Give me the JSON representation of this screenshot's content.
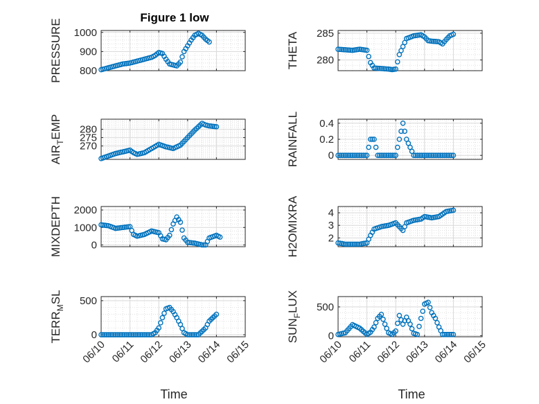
{
  "figure": {
    "title": "Figure 1 low",
    "xlabel": "Time",
    "marker_color": "#0072BD",
    "grid_color": "#D9D9D9"
  },
  "chart_data": [
    {
      "type": "scatter",
      "ylabel": "PRESSURE",
      "ylim": [
        800,
        1010
      ],
      "yticks": [
        800,
        900,
        1000
      ],
      "xlim": [
        "06/10",
        "06/15"
      ],
      "xticks": [],
      "points": [
        [
          "06/10 00:00",
          805
        ],
        [
          "06/10 06:00",
          815
        ],
        [
          "06/10 12:00",
          825
        ],
        [
          "06/10 18:00",
          835
        ],
        [
          "06/11 00:00",
          840
        ],
        [
          "06/11 06:00",
          850
        ],
        [
          "06/11 12:00",
          860
        ],
        [
          "06/11 18:00",
          870
        ],
        [
          "06/11 21:00",
          880
        ],
        [
          "06/12 00:00",
          895
        ],
        [
          "06/12 03:00",
          890
        ],
        [
          "06/12 06:00",
          860
        ],
        [
          "06/12 09:00",
          835
        ],
        [
          "06/12 12:00",
          830
        ],
        [
          "06/12 15:00",
          825
        ],
        [
          "06/12 18:00",
          845
        ],
        [
          "06/12 21:00",
          900
        ],
        [
          "06/13 00:00",
          930
        ],
        [
          "06/13 03:00",
          960
        ],
        [
          "06/13 06:00",
          985
        ],
        [
          "06/13 09:00",
          995
        ],
        [
          "06/13 12:00",
          985
        ],
        [
          "06/13 15:00",
          965
        ],
        [
          "06/13 18:00",
          950
        ]
      ]
    },
    {
      "type": "scatter",
      "ylabel": "THETA",
      "ylim": [
        278,
        285.5
      ],
      "yticks": [
        280,
        285
      ],
      "xlim": [
        "06/10",
        "06/15"
      ],
      "xticks": [],
      "points": [
        [
          "06/10 00:00",
          282.0
        ],
        [
          "06/10 06:00",
          281.9
        ],
        [
          "06/10 12:00",
          281.8
        ],
        [
          "06/10 18:00",
          282.0
        ],
        [
          "06/11 00:00",
          281.8
        ],
        [
          "06/11 03:00",
          279.5
        ],
        [
          "06/11 06:00",
          278.5
        ],
        [
          "06/11 12:00",
          278.4
        ],
        [
          "06/11 18:00",
          278.3
        ],
        [
          "06/11 21:00",
          278.2
        ],
        [
          "06/12 00:00",
          278.3
        ],
        [
          "06/12 03:00",
          281.0
        ],
        [
          "06/12 06:00",
          282.5
        ],
        [
          "06/12 09:00",
          284.0
        ],
        [
          "06/12 15:00",
          284.5
        ],
        [
          "06/12 21:00",
          284.7
        ],
        [
          "06/13 00:00",
          284.3
        ],
        [
          "06/13 03:00",
          283.6
        ],
        [
          "06/13 06:00",
          283.5
        ],
        [
          "06/13 12:00",
          283.4
        ],
        [
          "06/13 15:00",
          283.0
        ],
        [
          "06/13 18:00",
          283.8
        ],
        [
          "06/13 21:00",
          284.5
        ],
        [
          "06/14 00:00",
          284.8
        ]
      ]
    },
    {
      "type": "scatter",
      "ylabel": "AIR_TEMP",
      "ylim": [
        262,
        286
      ],
      "yticks": [
        270,
        275,
        280
      ],
      "xlim": [
        "06/10",
        "06/15"
      ],
      "xticks": [],
      "points": [
        [
          "06/10 00:00",
          262.5
        ],
        [
          "06/10 06:00",
          264.0
        ],
        [
          "06/10 12:00",
          265.5
        ],
        [
          "06/10 18:00",
          266.5
        ],
        [
          "06/11 00:00",
          267.5
        ],
        [
          "06/11 03:00",
          266.0
        ],
        [
          "06/11 06:00",
          265.0
        ],
        [
          "06/11 12:00",
          266.0
        ],
        [
          "06/11 18:00",
          268.5
        ],
        [
          "06/12 00:00",
          271.0
        ],
        [
          "06/12 06:00",
          269.5
        ],
        [
          "06/12 12:00",
          268.5
        ],
        [
          "06/12 18:00",
          270.5
        ],
        [
          "06/13 00:00",
          275.0
        ],
        [
          "06/13 06:00",
          279.5
        ],
        [
          "06/13 12:00",
          283.5
        ],
        [
          "06/13 15:00",
          282.5
        ],
        [
          "06/13 18:00",
          282.0
        ],
        [
          "06/14 00:00",
          281.5
        ]
      ]
    },
    {
      "type": "scatter",
      "ylabel": "RAINFALL",
      "ylim": [
        -0.05,
        0.45
      ],
      "yticks": [
        0,
        0.2,
        0.4
      ],
      "xlim": [
        "06/10",
        "06/15"
      ],
      "xticks": [],
      "points": [
        [
          "06/10 00:00",
          0
        ],
        [
          "06/10 06:00",
          0
        ],
        [
          "06/10 12:00",
          0
        ],
        [
          "06/10 18:00",
          0
        ],
        [
          "06/11 00:00",
          0
        ],
        [
          "06/11 03:00",
          0.2
        ],
        [
          "06/11 06:00",
          0.2
        ],
        [
          "06/11 09:00",
          0
        ],
        [
          "06/11 12:00",
          0
        ],
        [
          "06/11 18:00",
          0
        ],
        [
          "06/12 00:00",
          0
        ],
        [
          "06/12 03:00",
          0.2
        ],
        [
          "06/12 06:00",
          0.4
        ],
        [
          "06/12 09:00",
          0.2
        ],
        [
          "06/12 12:00",
          0.1
        ],
        [
          "06/12 15:00",
          0
        ],
        [
          "06/12 21:00",
          0
        ],
        [
          "06/13 03:00",
          0
        ],
        [
          "06/13 09:00",
          0
        ],
        [
          "06/13 15:00",
          0
        ],
        [
          "06/13 21:00",
          0
        ],
        [
          "06/14 00:00",
          0
        ]
      ]
    },
    {
      "type": "scatter",
      "ylabel": "MIXDEPTH",
      "ylim": [
        -100,
        2200
      ],
      "yticks": [
        0,
        1000,
        2000
      ],
      "xlim": [
        "06/10",
        "06/15"
      ],
      "xticks": [],
      "points": [
        [
          "06/10 00:00",
          1150
        ],
        [
          "06/10 06:00",
          1100
        ],
        [
          "06/10 12:00",
          950
        ],
        [
          "06/10 18:00",
          1000
        ],
        [
          "06/11 00:00",
          1050
        ],
        [
          "06/11 03:00",
          600
        ],
        [
          "06/11 06:00",
          500
        ],
        [
          "06/11 12:00",
          600
        ],
        [
          "06/11 18:00",
          800
        ],
        [
          "06/12 00:00",
          700
        ],
        [
          "06/12 03:00",
          350
        ],
        [
          "06/12 06:00",
          300
        ],
        [
          "06/12 09:00",
          550
        ],
        [
          "06/12 12:00",
          1200
        ],
        [
          "06/12 15:00",
          1600
        ],
        [
          "06/12 18:00",
          1300
        ],
        [
          "06/12 21:00",
          400
        ],
        [
          "06/13 00:00",
          150
        ],
        [
          "06/13 06:00",
          100
        ],
        [
          "06/13 12:00",
          0
        ],
        [
          "06/13 15:00",
          0
        ],
        [
          "06/13 18:00",
          400
        ],
        [
          "06/14 00:00",
          550
        ],
        [
          "06/14 03:00",
          450
        ]
      ]
    },
    {
      "type": "scatter",
      "ylabel": "H2OMIXRA",
      "ylim": [
        1.3,
        4.5
      ],
      "yticks": [
        2,
        3,
        4
      ],
      "xlim": [
        "06/10",
        "06/15"
      ],
      "xticks": [],
      "points": [
        [
          "06/10 00:00",
          1.6
        ],
        [
          "06/10 06:00",
          1.5
        ],
        [
          "06/10 12:00",
          1.5
        ],
        [
          "06/10 18:00",
          1.5
        ],
        [
          "06/11 00:00",
          1.6
        ],
        [
          "06/11 03:00",
          2.2
        ],
        [
          "06/11 06:00",
          2.7
        ],
        [
          "06/11 12:00",
          2.9
        ],
        [
          "06/11 18:00",
          3.0
        ],
        [
          "06/12 00:00",
          3.2
        ],
        [
          "06/12 06:00",
          2.6
        ],
        [
          "06/12 09:00",
          3.2
        ],
        [
          "06/12 15:00",
          3.4
        ],
        [
          "06/12 21:00",
          3.5
        ],
        [
          "06/13 00:00",
          3.7
        ],
        [
          "06/13 06:00",
          3.6
        ],
        [
          "06/13 12:00",
          3.7
        ],
        [
          "06/13 18:00",
          4.1
        ],
        [
          "06/14 00:00",
          4.2
        ]
      ]
    },
    {
      "type": "scatter",
      "ylabel": "TERR_MSL",
      "ylim": [
        -30,
        560
      ],
      "yticks": [
        0,
        500
      ],
      "xlim": [
        "06/10",
        "06/15"
      ],
      "xticks": [
        "06/10",
        "06/11",
        "06/12",
        "06/13",
        "06/14",
        "06/15"
      ],
      "points": [
        [
          "06/10 00:00",
          0
        ],
        [
          "06/10 06:00",
          0
        ],
        [
          "06/10 12:00",
          0
        ],
        [
          "06/10 18:00",
          0
        ],
        [
          "06/11 00:00",
          0
        ],
        [
          "06/11 06:00",
          0
        ],
        [
          "06/11 12:00",
          0
        ],
        [
          "06/11 18:00",
          0
        ],
        [
          "06/11 21:00",
          30
        ],
        [
          "06/12 00:00",
          100
        ],
        [
          "06/12 03:00",
          250
        ],
        [
          "06/12 06:00",
          380
        ],
        [
          "06/12 09:00",
          400
        ],
        [
          "06/12 12:00",
          340
        ],
        [
          "06/12 15:00",
          250
        ],
        [
          "06/12 18:00",
          150
        ],
        [
          "06/12 21:00",
          30
        ],
        [
          "06/13 00:00",
          0
        ],
        [
          "06/13 06:00",
          0
        ],
        [
          "06/13 09:00",
          0
        ],
        [
          "06/13 15:00",
          100
        ],
        [
          "06/13 18:00",
          200
        ],
        [
          "06/14 00:00",
          300
        ]
      ]
    },
    {
      "type": "scatter",
      "ylabel": "SUN_FLUX",
      "ylim": [
        -20,
        680
      ],
      "yticks": [
        0,
        500
      ],
      "xlim": [
        "06/10",
        "06/15"
      ],
      "xticks": [
        "06/10",
        "06/11",
        "06/12",
        "06/13",
        "06/14",
        "06/15"
      ],
      "points": [
        [
          "06/10 00:00",
          20
        ],
        [
          "06/10 06:00",
          50
        ],
        [
          "06/10 12:00",
          190
        ],
        [
          "06/10 18:00",
          130
        ],
        [
          "06/11 00:00",
          20
        ],
        [
          "06/11 03:00",
          60
        ],
        [
          "06/11 06:00",
          150
        ],
        [
          "06/11 09:00",
          300
        ],
        [
          "06/11 12:00",
          370
        ],
        [
          "06/11 15:00",
          200
        ],
        [
          "06/11 18:00",
          50
        ],
        [
          "06/11 21:00",
          20
        ],
        [
          "06/12 00:00",
          80
        ],
        [
          "06/12 03:00",
          350
        ],
        [
          "06/12 06:00",
          200
        ],
        [
          "06/12 09:00",
          320
        ],
        [
          "06/12 12:00",
          200
        ],
        [
          "06/12 15:00",
          40
        ],
        [
          "06/12 18:00",
          20
        ],
        [
          "06/12 21:00",
          300
        ],
        [
          "06/13 00:00",
          550
        ],
        [
          "06/13 03:00",
          580
        ],
        [
          "06/13 06:00",
          400
        ],
        [
          "06/13 09:00",
          300
        ],
        [
          "06/13 12:00",
          150
        ],
        [
          "06/13 15:00",
          20
        ],
        [
          "06/14 00:00",
          20
        ]
      ]
    }
  ]
}
